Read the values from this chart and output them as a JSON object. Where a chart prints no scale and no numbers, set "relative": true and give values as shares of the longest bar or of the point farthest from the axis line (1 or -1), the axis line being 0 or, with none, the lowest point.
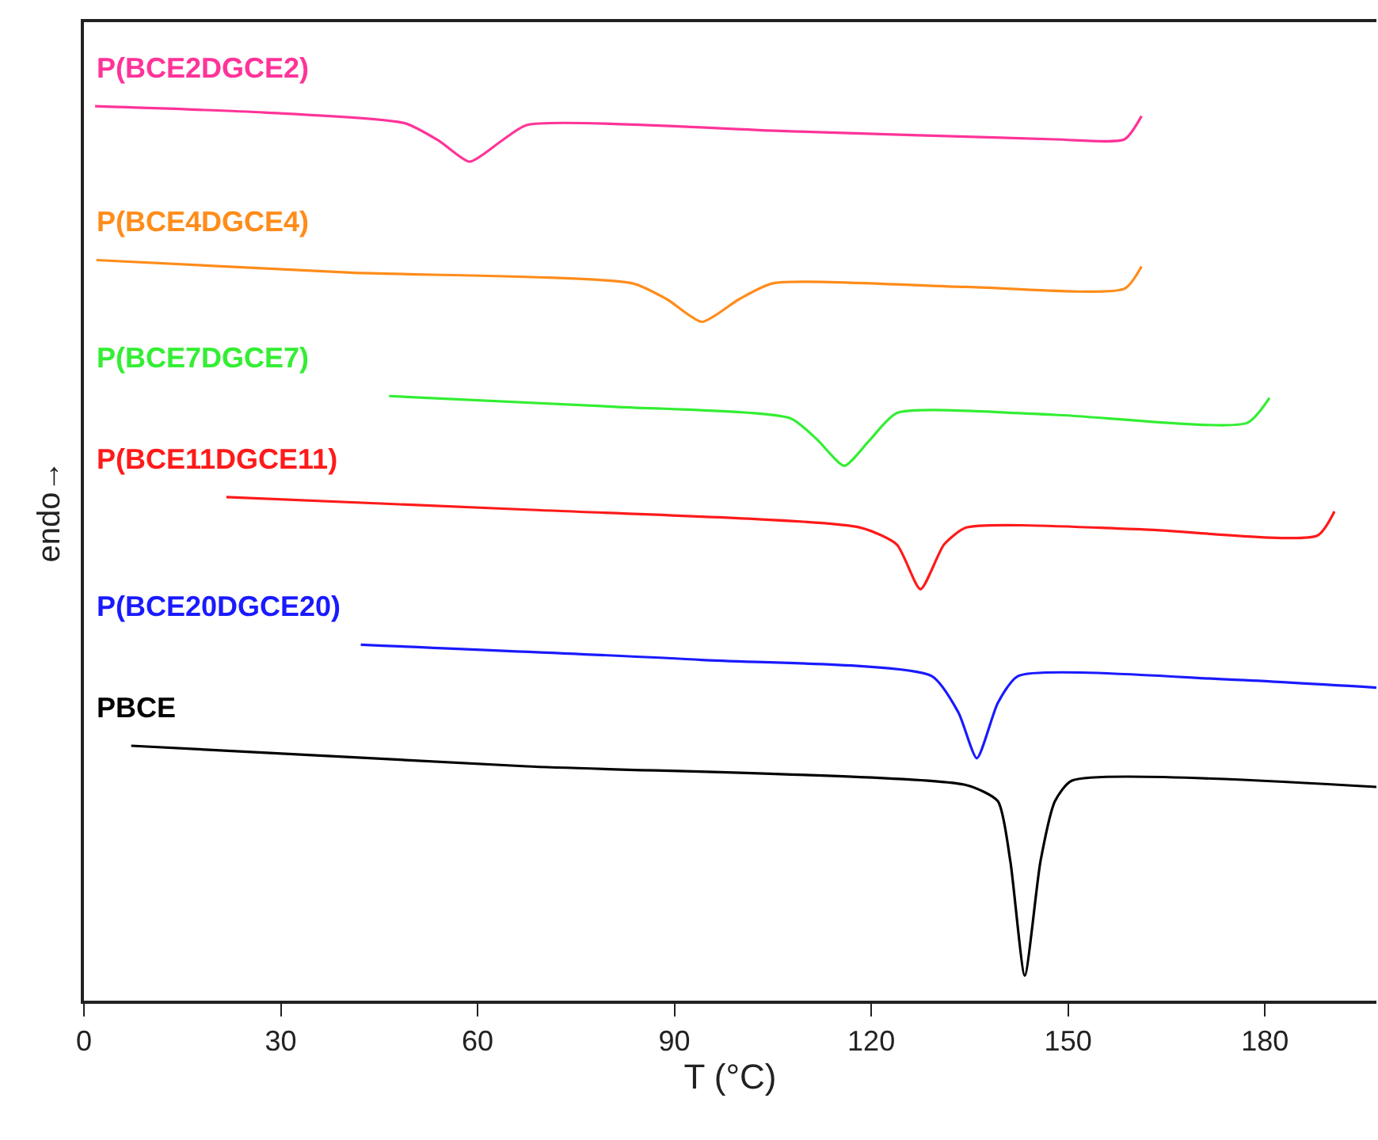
{
  "chart_data": {
    "type": "line",
    "relative": true,
    "xlabel": "T (°C)",
    "ylabel": "endo→",
    "xlim": [
      0,
      197
    ],
    "xticks": [
      0,
      30,
      60,
      90,
      120,
      150,
      180
    ],
    "grid": false,
    "legend": false,
    "marker": "none",
    "line_style": "solid",
    "series": [
      {
        "name": "P(BCE2DGCE2)",
        "color": "#ff3399",
        "x": [
          1.7,
          27.5,
          48.9,
          54.2,
          58.8,
          63.6,
          67.5,
          107.7,
          148,
          158.6,
          161.2
        ],
        "values": [
          1.0,
          0.993,
          0.981,
          0.961,
          0.938,
          0.961,
          0.979,
          0.972,
          0.963,
          0.963,
          0.989
        ]
      },
      {
        "name": "P(BCE4DGCE4)",
        "color": "#ff8c1a",
        "x": [
          1.9,
          40.7,
          83.6,
          88.9,
          94.2,
          99.8,
          105,
          134.5,
          158.6,
          161.2
        ],
        "values": [
          0.828,
          0.814,
          0.802,
          0.784,
          0.759,
          0.784,
          0.802,
          0.798,
          0.796,
          0.821
        ]
      },
      {
        "name": "P(BCE7DGCE7)",
        "color": "#33ee33",
        "x": [
          46.5,
          81,
          107.7,
          111.8,
          115.9,
          119.8,
          123.9,
          148,
          177.3,
          180.7
        ],
        "values": [
          0.676,
          0.664,
          0.651,
          0.627,
          0.598,
          0.627,
          0.657,
          0.655,
          0.646,
          0.674
        ]
      },
      {
        "name": "P(BCE11DGCE11)",
        "color": "#ff1a1a",
        "x": [
          21.7,
          67.5,
          118.3,
          123.9,
          127.5,
          131.1,
          134.5,
          161.2,
          188,
          190.6
        ],
        "values": [
          0.563,
          0.549,
          0.529,
          0.51,
          0.46,
          0.51,
          0.529,
          0.527,
          0.52,
          0.547
        ]
      },
      {
        "name": "P(BCE20DGCE20)",
        "color": "#1a1aff",
        "x": [
          42.2,
          94.2,
          129.2,
          133.3,
          136.1,
          139.3,
          142.4,
          174.7,
          197
        ],
        "values": [
          0.398,
          0.381,
          0.363,
          0.322,
          0.271,
          0.333,
          0.363,
          0.359,
          0.35
        ]
      },
      {
        "name": "PBCE",
        "color": "#000000",
        "x": [
          7.2,
          67.5,
          134.5,
          139.3,
          141.2,
          143.4,
          145.8,
          148,
          150.6,
          197
        ],
        "values": [
          0.285,
          0.262,
          0.241,
          0.223,
          0.156,
          0.028,
          0.156,
          0.223,
          0.246,
          0.239
        ]
      }
    ]
  }
}
